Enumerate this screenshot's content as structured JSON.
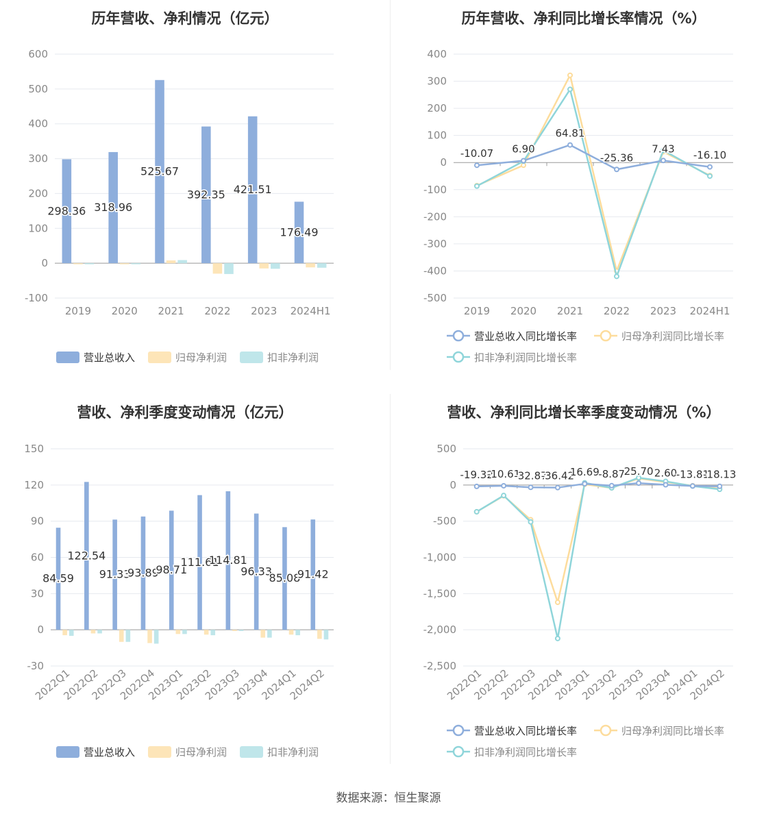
{
  "colors": {
    "revenue": "#8eaedc",
    "parent": "#fde5b8",
    "deducted": "#bfe6ea",
    "line_revenue": "#8eaedc",
    "line_parent": "#fddc9c",
    "line_deducted": "#8fd5da",
    "grid": "#e6e9ef",
    "axis_text": "#888888",
    "title_text": "#333333"
  },
  "footer": "数据来源：恒生聚源",
  "chart_data": [
    {
      "type": "bar",
      "title": "历年营收、净利情况（亿元）",
      "categories": [
        "2019",
        "2020",
        "2021",
        "2022",
        "2023",
        "2024H1"
      ],
      "ylim": [
        -100,
        600
      ],
      "yticks": [
        -100,
        0,
        100,
        200,
        300,
        400,
        500,
        600
      ],
      "series": [
        {
          "name": "营业总收入",
          "values": [
            298.36,
            318.96,
            525.67,
            392.35,
            421.51,
            176.49
          ],
          "labels": [
            "298.36",
            "318.96",
            "525.67",
            "392.35",
            "421.51",
            "176.49"
          ]
        },
        {
          "name": "归母净利润",
          "values": [
            -3,
            -3,
            8,
            -30,
            -15,
            -12
          ]
        },
        {
          "name": "扣非净利润",
          "values": [
            -3,
            -3,
            9,
            -31,
            -16,
            -13
          ]
        }
      ]
    },
    {
      "type": "line",
      "title": "历年营收、净利同比增长率情况（%）",
      "categories": [
        "2019",
        "2020",
        "2021",
        "2022",
        "2023",
        "2024H1"
      ],
      "ylim": [
        -500,
        400
      ],
      "yticks": [
        -500,
        -400,
        -300,
        -200,
        -100,
        0,
        100,
        200,
        300,
        400
      ],
      "series": [
        {
          "name": "营业总收入同比增长率",
          "values": [
            -10.07,
            6.9,
            64.81,
            -25.36,
            7.43,
            -16.1
          ],
          "labels": [
            "-10.07",
            "6.90",
            "64.81",
            "-25.36",
            "7.43",
            "-16.10"
          ]
        },
        {
          "name": "归母净利润同比增长率",
          "values": [
            -85,
            -10,
            322,
            -400,
            40,
            -48
          ]
        },
        {
          "name": "扣非净利润同比增长率",
          "values": [
            -87,
            5,
            270,
            -420,
            45,
            -50
          ]
        }
      ]
    },
    {
      "type": "bar",
      "title": "营收、净利季度变动情况（亿元）",
      "categories": [
        "2022Q1",
        "2022Q2",
        "2022Q3",
        "2022Q4",
        "2023Q1",
        "2023Q2",
        "2023Q3",
        "2023Q4",
        "2024Q1",
        "2024Q2"
      ],
      "ylim": [
        -30,
        150
      ],
      "yticks": [
        -30,
        0,
        30,
        60,
        90,
        120,
        150
      ],
      "series": [
        {
          "name": "营业总收入",
          "values": [
            84.59,
            122.54,
            91.33,
            93.89,
            98.71,
            111.61,
            114.81,
            96.33,
            85.08,
            91.42
          ],
          "labels": [
            "84.59",
            "122.54",
            "91.33",
            "93.89",
            "98.71",
            "111.61",
            "114.81",
            "96.33",
            "85.08",
            "91.42"
          ]
        },
        {
          "name": "归母净利润",
          "values": [
            -4.5,
            -3,
            -10,
            -11,
            -3.5,
            -4,
            -1,
            -6.5,
            -4,
            -7.5
          ]
        },
        {
          "name": "扣非净利润",
          "values": [
            -5,
            -3,
            -10,
            -11.5,
            -3.5,
            -4.5,
            -1,
            -6.5,
            -4.5,
            -8
          ]
        }
      ]
    },
    {
      "type": "line",
      "title": "营收、净利同比增长率季度变动情况（%）",
      "categories": [
        "2022Q1",
        "2022Q2",
        "2022Q3",
        "2022Q4",
        "2023Q1",
        "2023Q2",
        "2023Q3",
        "2023Q4",
        "2024Q1",
        "2024Q2"
      ],
      "ylim": [
        -2500,
        500
      ],
      "yticks": [
        -2500,
        -2000,
        -1500,
        -1000,
        -500,
        0,
        500
      ],
      "series": [
        {
          "name": "营业总收入同比增长率",
          "values": [
            -19.32,
            -10.61,
            -32.87,
            -36.42,
            16.69,
            -8.87,
            25.7,
            2.6,
            -13.81,
            -18.13
          ],
          "labels": [
            "-19.32",
            "-10.61",
            "-32.87",
            "-36.42",
            "16.69",
            "-8.87",
            "25.70",
            "2.60",
            "-13.81",
            "-18.13"
          ]
        },
        {
          "name": "归母净利润同比增长率",
          "values": [
            -370,
            -150,
            -480,
            -1620,
            10,
            -40,
            90,
            40,
            -10,
            -50
          ]
        },
        {
          "name": "扣非净利润同比增长率",
          "values": [
            -370,
            -145,
            -510,
            -2120,
            30,
            -40,
            100,
            50,
            -15,
            -60
          ]
        }
      ]
    }
  ]
}
